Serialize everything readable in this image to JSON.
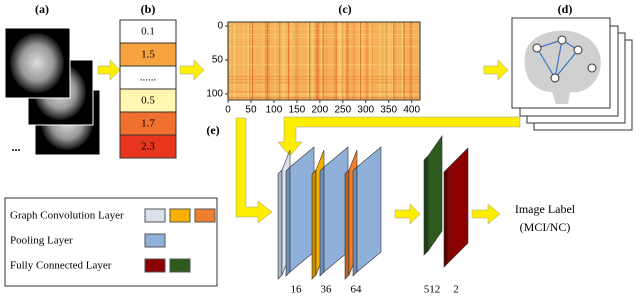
{
  "labels": {
    "a": "(a)",
    "b": "(b)",
    "c": "(c)",
    "d": "(d)",
    "e": "(e)"
  },
  "ellipsis": "...",
  "feature_values": [
    "0.1",
    "1.5",
    "......",
    "0.5",
    "1.7",
    "2.3"
  ],
  "heatmap": {
    "x_ticks": [
      "0",
      "50",
      "100",
      "150",
      "200",
      "250",
      "300",
      "350",
      "400"
    ],
    "y_ticks": [
      "0",
      "50",
      "100"
    ]
  },
  "legend": [
    "Graph Convolution Layer",
    "Pooling Layer",
    "Fully Connected Layer"
  ],
  "layer_sizes": [
    "16",
    "36",
    "64",
    "512",
    "2"
  ],
  "output": {
    "line1": "Image Label",
    "line2": "(MCI/NC)"
  }
}
